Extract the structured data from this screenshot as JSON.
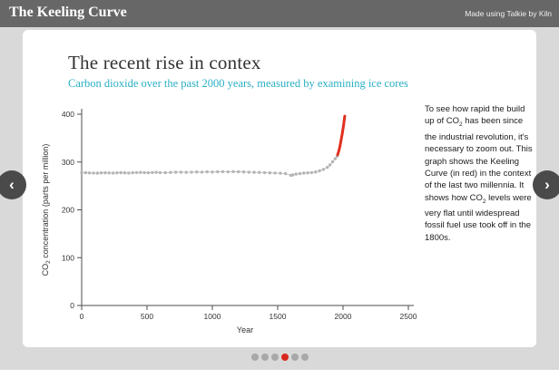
{
  "header": {
    "title": "The Keeling Curve",
    "credit": "Made using Talkie by Kiln"
  },
  "slide": {
    "title": "The recent rise in contex",
    "subtitle": "Carbon dioxide over the past 2000 years, measured by examining ice cores",
    "description": {
      "p1": "To see how rapid the build up of CO",
      "sub1": "2",
      "p2": " has been since the industrial revolution, it's necessary to zoom out. This graph shows the Keeling Curve (in red) in the context of the last two millennia. It shows how CO",
      "sub2": "2",
      "p3": " levels were very flat until widespread fossil fuel use took off in the 1800s."
    }
  },
  "nav": {
    "prev_label": "‹",
    "next_label": "›"
  },
  "pagination": {
    "count": 6,
    "active_index": 3
  },
  "colors": {
    "header_bg": "#676767",
    "page_bg": "#d9d9d9",
    "teal": "#2aafc4",
    "accent_red": "#e0301e",
    "line_gray": "#b5b5b5",
    "axis": "#4d4d4d",
    "dot_active": "#d8271c"
  },
  "chart_data": {
    "type": "line",
    "title": "",
    "xlabel": "Year",
    "ylabel_parts": {
      "pre": "CO",
      "sub": "2",
      "post": " concentration (parts per million)"
    },
    "xlim": [
      0,
      2500
    ],
    "ylim": [
      0,
      400
    ],
    "xticks": [
      0,
      500,
      1000,
      1500,
      2000,
      2500
    ],
    "yticks": [
      0,
      100,
      200,
      300,
      400
    ],
    "grid": false,
    "legend": false,
    "series": [
      {
        "name": "ice-core-record",
        "color": "#b5b5b5",
        "marker": true,
        "line_width": 0.8,
        "points": [
          [
            0,
            277.5
          ],
          [
            30,
            277.8
          ],
          [
            60,
            277.2
          ],
          [
            90,
            277.0
          ],
          [
            120,
            276.8
          ],
          [
            150,
            277.3
          ],
          [
            180,
            277.6
          ],
          [
            210,
            277.2
          ],
          [
            240,
            276.9
          ],
          [
            270,
            277.4
          ],
          [
            300,
            277.8
          ],
          [
            330,
            277.3
          ],
          [
            360,
            277.0
          ],
          [
            390,
            277.5
          ],
          [
            420,
            277.9
          ],
          [
            450,
            278.3
          ],
          [
            480,
            278.0
          ],
          [
            510,
            277.6
          ],
          [
            540,
            278.1
          ],
          [
            570,
            278.4
          ],
          [
            600,
            278.0
          ],
          [
            640,
            277.7
          ],
          [
            680,
            278.2
          ],
          [
            720,
            278.6
          ],
          [
            760,
            278.9
          ],
          [
            800,
            278.5
          ],
          [
            840,
            278.8
          ],
          [
            880,
            279.2
          ],
          [
            920,
            278.9
          ],
          [
            960,
            279.4
          ],
          [
            1000,
            279.1
          ],
          [
            1040,
            279.6
          ],
          [
            1080,
            279.9
          ],
          [
            1120,
            279.5
          ],
          [
            1160,
            280.0
          ],
          [
            1200,
            279.7
          ],
          [
            1240,
            279.3
          ],
          [
            1280,
            278.9
          ],
          [
            1320,
            278.5
          ],
          [
            1360,
            278.2
          ],
          [
            1400,
            277.8
          ],
          [
            1440,
            277.4
          ],
          [
            1480,
            277.0
          ],
          [
            1520,
            276.5
          ],
          [
            1560,
            275.8
          ],
          [
            1600,
            272.2
          ],
          [
            1615,
            273.0
          ],
          [
            1640,
            274.6
          ],
          [
            1670,
            275.9
          ],
          [
            1700,
            276.8
          ],
          [
            1730,
            277.4
          ],
          [
            1760,
            277.9
          ],
          [
            1790,
            279.3
          ],
          [
            1820,
            281.5
          ],
          [
            1850,
            284.5
          ],
          [
            1880,
            289.0
          ],
          [
            1900,
            294.0
          ],
          [
            1920,
            300.5
          ],
          [
            1940,
            307.0
          ],
          [
            1956,
            312.5
          ]
        ]
      },
      {
        "name": "keeling-curve",
        "color": "#e0301e",
        "marker": false,
        "line_width": 3,
        "points": [
          [
            1958,
            315
          ],
          [
            1962,
            318
          ],
          [
            1966,
            321.5
          ],
          [
            1970,
            325.5
          ],
          [
            1974,
            330
          ],
          [
            1978,
            335
          ],
          [
            1982,
            341
          ],
          [
            1986,
            347.5
          ],
          [
            1990,
            354
          ],
          [
            1994,
            358.5
          ],
          [
            1998,
            366
          ],
          [
            2002,
            373
          ],
          [
            2006,
            381
          ],
          [
            2010,
            389
          ],
          [
            2013,
            396
          ]
        ]
      }
    ]
  }
}
